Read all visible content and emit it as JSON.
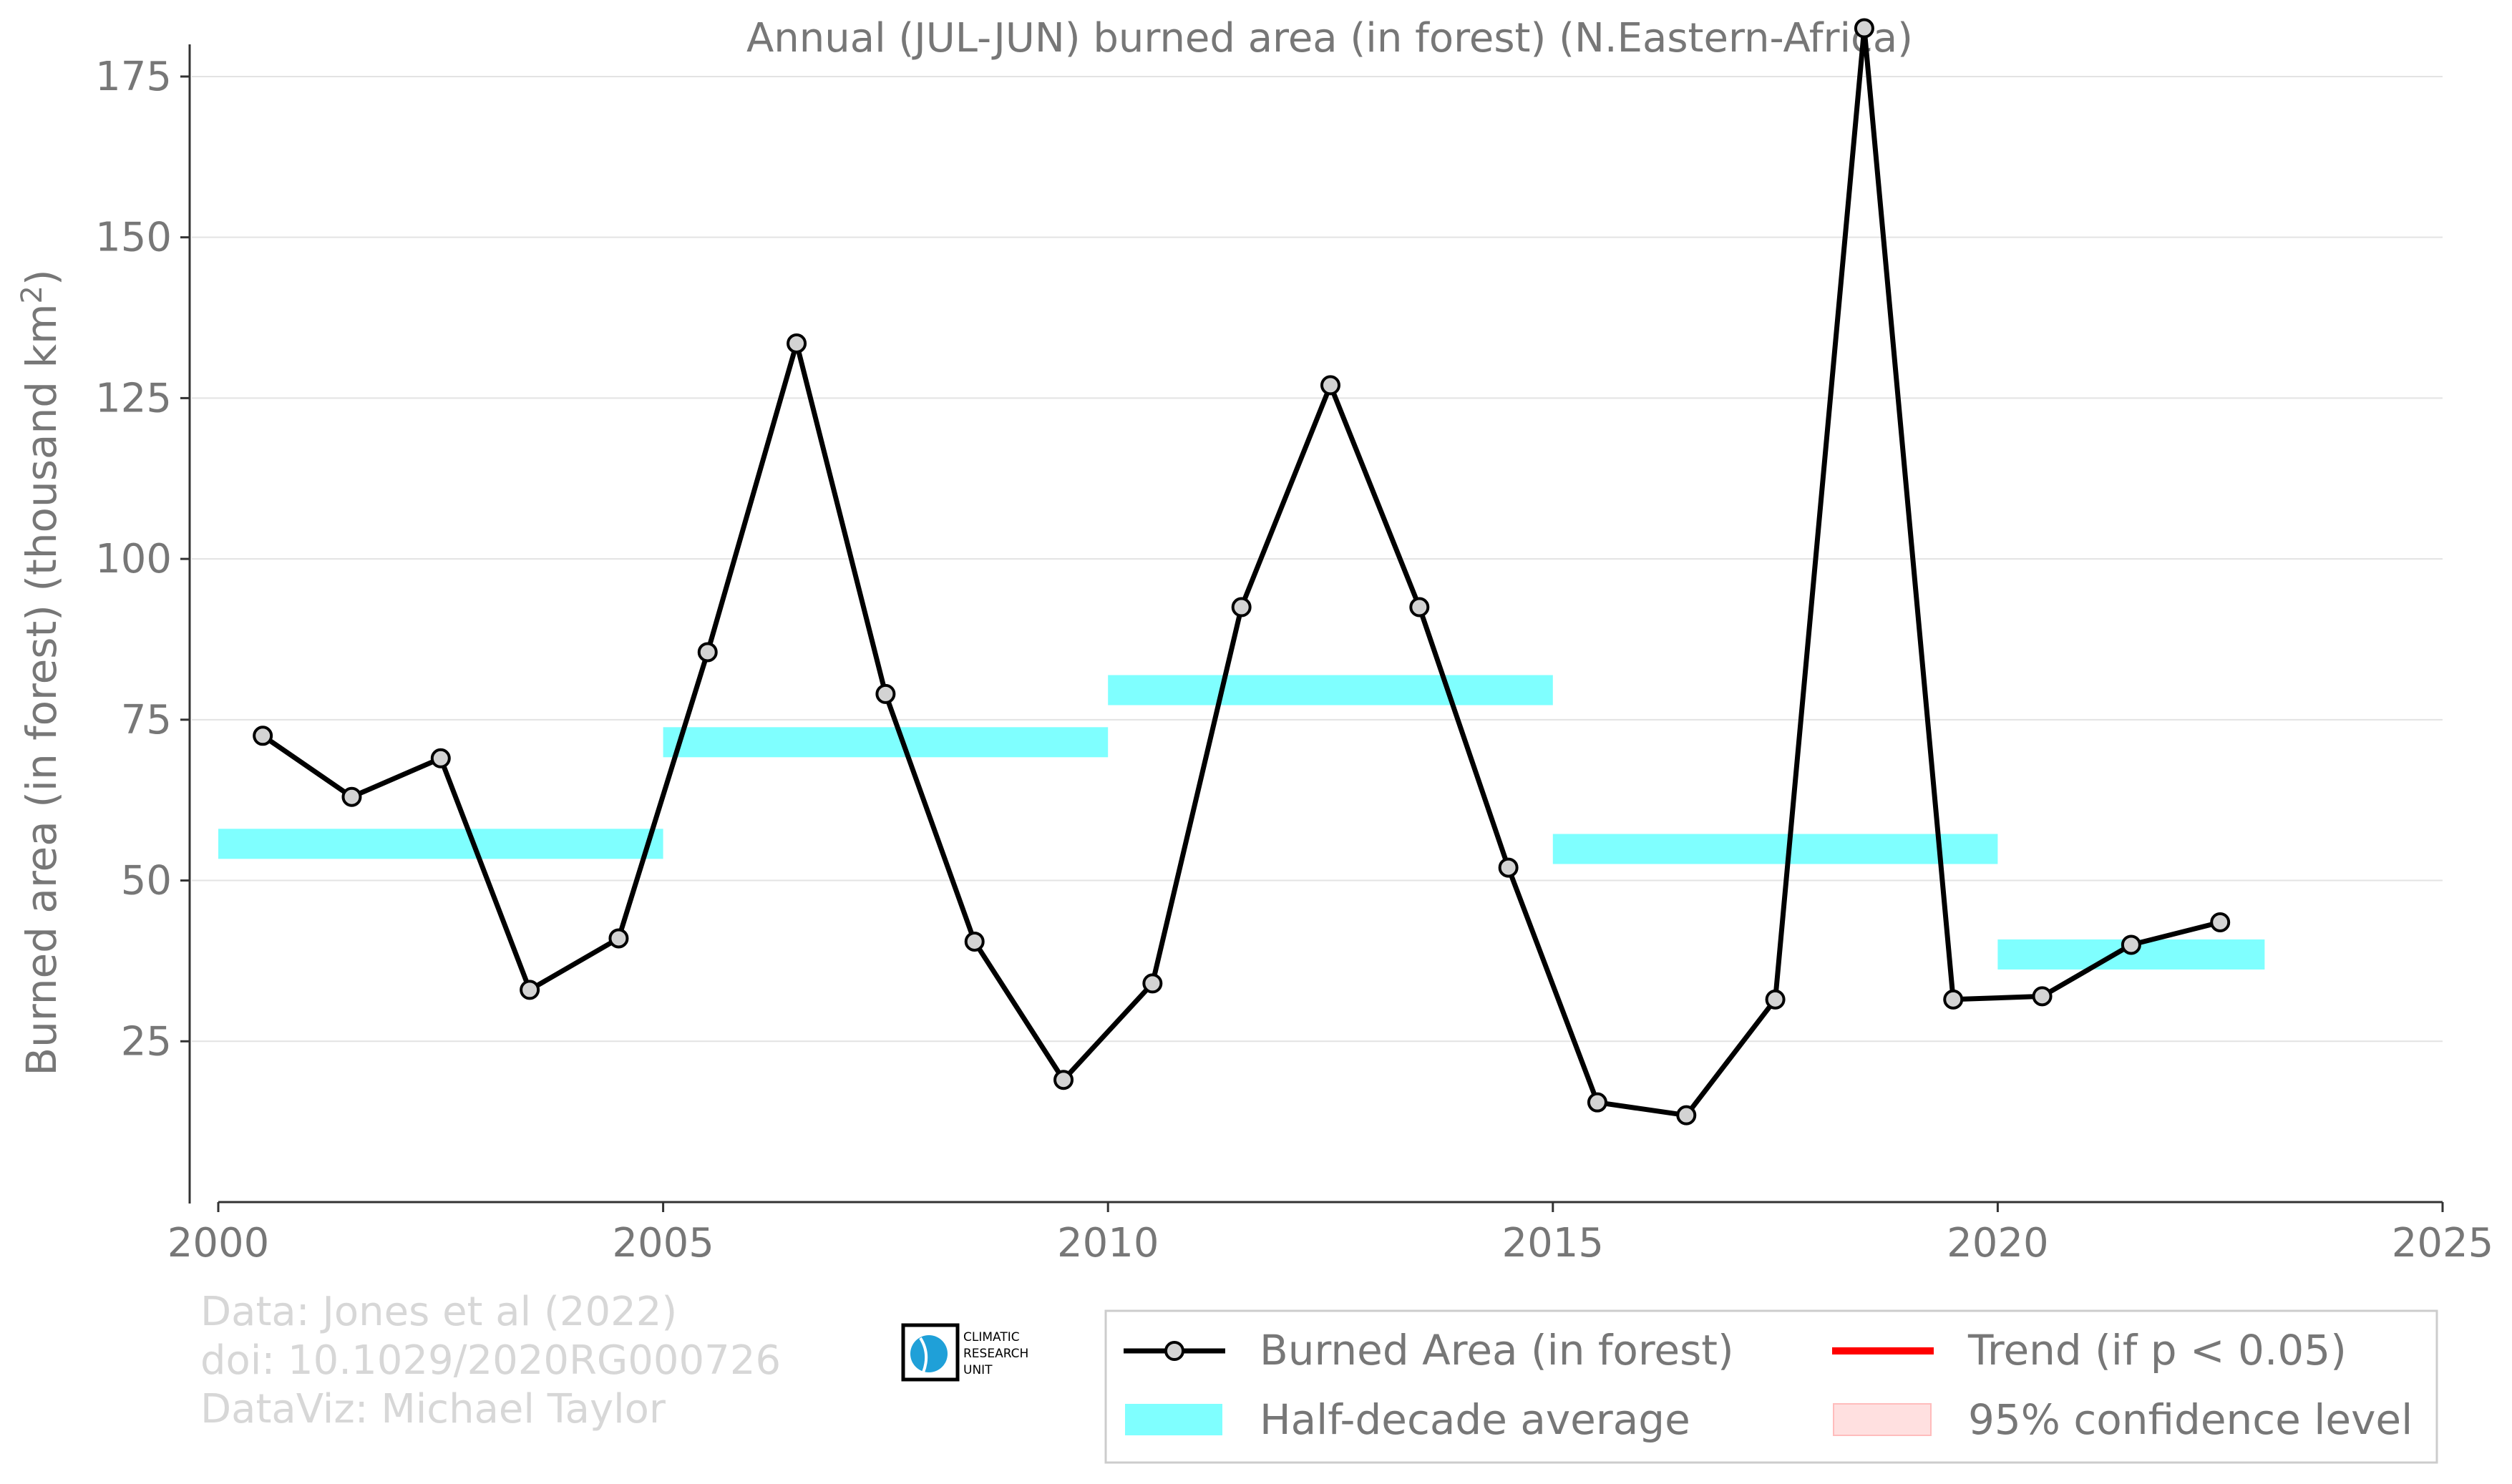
{
  "chart_data": {
    "type": "line",
    "title": "Annual (JUL-JUN) burned area (in forest) (N.Eastern-Africa)",
    "ylabel": "Burned area (in forest) (thousand km",
    "ylabel_sup": "2",
    "ylabel_close": ")",
    "xlabel": "",
    "xlim": [
      2000,
      2025
    ],
    "ylim": [
      0,
      180
    ],
    "x_ticks": [
      "2000",
      "2005",
      "2010",
      "2015",
      "2020",
      "2025"
    ],
    "y_ticks": [
      "25",
      "50",
      "75",
      "100",
      "125",
      "150",
      "175"
    ],
    "grid": true,
    "series": [
      {
        "name": "Burned Area (in forest)",
        "color": "#000000",
        "x": [
          2000.5,
          2001.5,
          2002.5,
          2003.5,
          2004.5,
          2005.5,
          2006.5,
          2007.5,
          2008.5,
          2009.5,
          2010.5,
          2011.5,
          2012.5,
          2013.5,
          2014.5,
          2015.5,
          2016.5,
          2017.5,
          2018.5,
          2019.5,
          2020.5,
          2021.5,
          2022.5
        ],
        "values": [
          72.5,
          63,
          69,
          33,
          41,
          85.5,
          133.5,
          79,
          40.5,
          19,
          34,
          92.5,
          127,
          92.5,
          52,
          15.5,
          13.5,
          31.5,
          182.5,
          31.5,
          32,
          40,
          43.5
        ]
      }
    ],
    "half_decade_average": {
      "name": "Half-decade average",
      "color": "#7fffff",
      "segments": [
        {
          "x0": 2000,
          "x1": 2005,
          "value": 55.7
        },
        {
          "x0": 2005,
          "x1": 2010,
          "value": 71.5
        },
        {
          "x0": 2010,
          "x1": 2015,
          "value": 79.6
        },
        {
          "x0": 2015,
          "x1": 2020,
          "value": 54.9
        },
        {
          "x0": 2020,
          "x1": 2023,
          "value": 38.5
        }
      ]
    },
    "legend": {
      "placement": "bottom-right",
      "entries": [
        {
          "label": "Burned Area (in forest)",
          "kind": "line-marker",
          "color": "#000000"
        },
        {
          "label": "Trend (if p < 0.05)",
          "kind": "line",
          "color": "#ff0000"
        },
        {
          "label": "Half-decade average",
          "kind": "band",
          "color": "#7fffff"
        },
        {
          "label": "95% confidence level",
          "kind": "band",
          "color": "#ffe0e0"
        }
      ]
    }
  },
  "credits": {
    "data": "Data: Jones et al (2022)",
    "doi": "doi: 10.1029/2020RG000726",
    "dataviz": "DataViz: Michael Taylor"
  },
  "logo": {
    "text_line1": "CLIMATIC",
    "text_line2": "RESEARCH",
    "text_line3": "UNIT",
    "color": "#1fa0d8"
  }
}
